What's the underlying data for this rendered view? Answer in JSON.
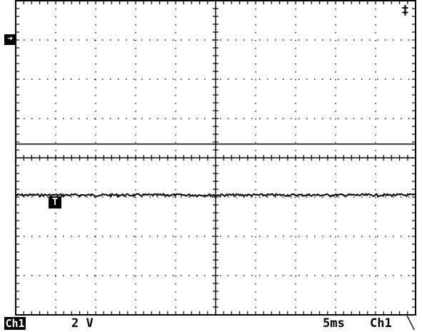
{
  "screen": {
    "ground_marker_glyph": "➜",
    "trigger_marker_label": "T",
    "top_right_glyphs": "‡"
  },
  "status_bar": {
    "channel_tag": "Ch1",
    "volts_per_div": "2 V",
    "time_per_div": "5ms",
    "trigger_source": "Ch1",
    "trigger_slope_glyph": "╲"
  },
  "waveform": {
    "channel": "Ch1",
    "level_div_from_center": -0.95,
    "noise_div": 0.03
  },
  "grid": {
    "horizontal_divisions": 10,
    "vertical_divisions": 8,
    "trigger_level_div_from_center": 0.35
  },
  "colors": {
    "background": "#ffffff",
    "trace": "#000000",
    "graticule": "#000000"
  }
}
